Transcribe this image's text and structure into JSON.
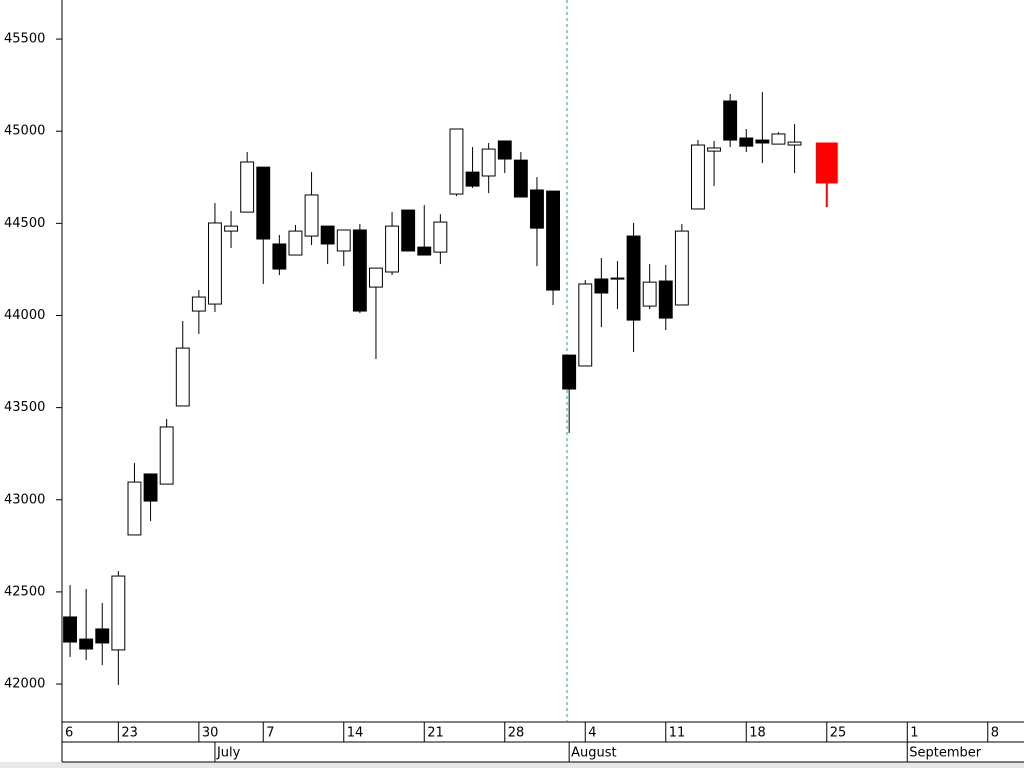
{
  "chart_data": {
    "type": "candlestick",
    "x": [
      0,
      1,
      2,
      3,
      4,
      5,
      6,
      7,
      8,
      9,
      10,
      11,
      12,
      13,
      14,
      15,
      16,
      17,
      18,
      19,
      20,
      21,
      22,
      23,
      24,
      25,
      26,
      27,
      28,
      29,
      30,
      31,
      32,
      33,
      34,
      35,
      36,
      37,
      38,
      39,
      40,
      41,
      42,
      43,
      44,
      45,
      47
    ],
    "open": [
      42364,
      42244,
      42299,
      42185,
      42809,
      43140,
      43085,
      43509,
      44024,
      44062,
      44458,
      44561,
      44805,
      44388,
      44328,
      44431,
      44485,
      44350,
      44464,
      44154,
      44236,
      44572,
      44371,
      44344,
      44659,
      44778,
      44757,
      44947,
      44843,
      44681,
      44675,
      43785,
      43726,
      44198,
      44198,
      44431,
      44051,
      44187,
      44057,
      44578,
      44892,
      45164,
      44963,
      44952,
      44930,
      44925,
      44936
    ],
    "high": [
      42537,
      42516,
      42440,
      42613,
      43199,
      43140,
      43438,
      43970,
      44138,
      44610,
      44567,
      44887,
      44805,
      44437,
      44491,
      44778,
      44485,
      44464,
      44496,
      44257,
      44561,
      44572,
      44599,
      44550,
      45012,
      44914,
      44936,
      44947,
      44887,
      44751,
      44675,
      43785,
      44192,
      44312,
      44295,
      44502,
      44279,
      44274,
      44496,
      44952,
      44947,
      45202,
      45012,
      45212,
      44995,
      45039,
      44936
    ],
    "low": [
      42147,
      42130,
      42103,
      41995,
      42809,
      42885,
      43085,
      43509,
      43899,
      44019,
      44366,
      44561,
      44171,
      44219,
      44328,
      44382,
      44279,
      44268,
      44013,
      43764,
      44219,
      44350,
      44328,
      44279,
      44648,
      44692,
      44664,
      44773,
      44643,
      44268,
      44057,
      43362,
      43726,
      43937,
      44035,
      43802,
      44035,
      43921,
      44057,
      44578,
      44702,
      44914,
      44887,
      44827,
      44930,
      44773,
      44588
    ],
    "close": [
      42228,
      42190,
      42223,
      42586,
      43096,
      42993,
      43395,
      43823,
      44100,
      44502,
      44485,
      44833,
      44415,
      44252,
      44458,
      44654,
      44388,
      44464,
      44024,
      44257,
      44485,
      44350,
      44328,
      44507,
      45012,
      44702,
      44903,
      44849,
      44643,
      44474,
      44138,
      43601,
      44171,
      44122,
      44203,
      43975,
      44181,
      43986,
      44458,
      44925,
      44909,
      44952,
      44919,
      44936,
      44985,
      44941,
      44719
    ],
    "up_color": "#ffffff",
    "down_color": "#000000",
    "last_color": "#ff0000",
    "xlim": [
      -0.5,
      59.25
    ],
    "ylim": [
      41794,
      45712
    ],
    "yticks": [
      42000,
      42500,
      43000,
      43500,
      44000,
      44500,
      45000,
      45500
    ],
    "xticks": [
      {
        "value": -0.5,
        "label": "6"
      },
      {
        "value": 3,
        "label": "23"
      },
      {
        "value": 8,
        "label": "30"
      },
      {
        "value": 12,
        "label": "7"
      },
      {
        "value": 17,
        "label": "14"
      },
      {
        "value": 22,
        "label": "21"
      },
      {
        "value": 27,
        "label": "28"
      },
      {
        "value": 32,
        "label": "4"
      },
      {
        "value": 37,
        "label": "11"
      },
      {
        "value": 42,
        "label": "18"
      },
      {
        "value": 47,
        "label": "25"
      },
      {
        "value": 52,
        "label": "1"
      },
      {
        "value": 57,
        "label": "8"
      }
    ],
    "month_ticks": [
      {
        "value": 9,
        "label": "July"
      },
      {
        "value": 31,
        "label": "August"
      },
      {
        "value": 52,
        "label": "September"
      }
    ]
  }
}
